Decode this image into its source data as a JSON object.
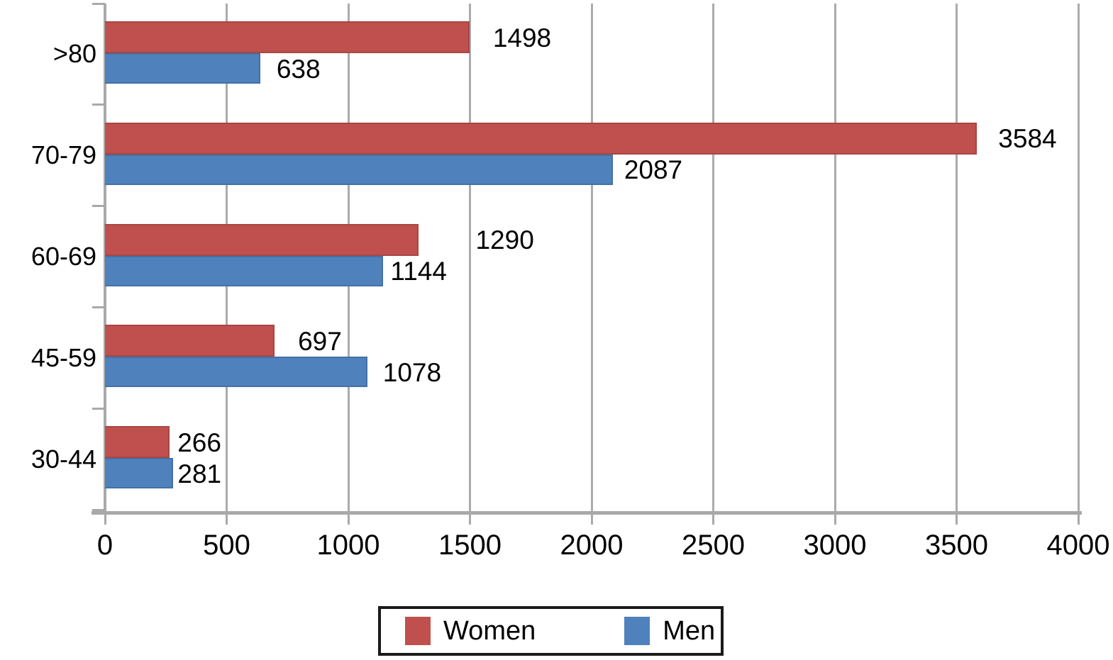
{
  "chart_data": {
    "type": "bar",
    "orientation": "horizontal",
    "title": "",
    "xlabel": "",
    "ylabel": "",
    "categories": [
      ">80",
      "70-79",
      "60-69",
      "45-59",
      "30-44"
    ],
    "series": [
      {
        "name": "Women",
        "color": "#c0504d",
        "values": [
          1498,
          3584,
          1290,
          697,
          266
        ]
      },
      {
        "name": "Men",
        "color": "#4f81bd",
        "values": [
          638,
          2087,
          1144,
          1078,
          281
        ]
      }
    ],
    "xlim": [
      0,
      4000
    ],
    "xticks": [
      0,
      500,
      1000,
      1500,
      2000,
      2500,
      3000,
      3500,
      4000
    ],
    "grid": "vertical-only",
    "grid_color": "#ababab",
    "axis_color": "#a9a9a9",
    "text_color": "#000000",
    "background_color": "#ffffff",
    "data_labels_visible": true,
    "legend_position": "bottom-center"
  },
  "legend": {
    "items": [
      {
        "label": "Women",
        "color": "#c0504d"
      },
      {
        "label": "Men",
        "color": "#4f81bd"
      }
    ]
  }
}
